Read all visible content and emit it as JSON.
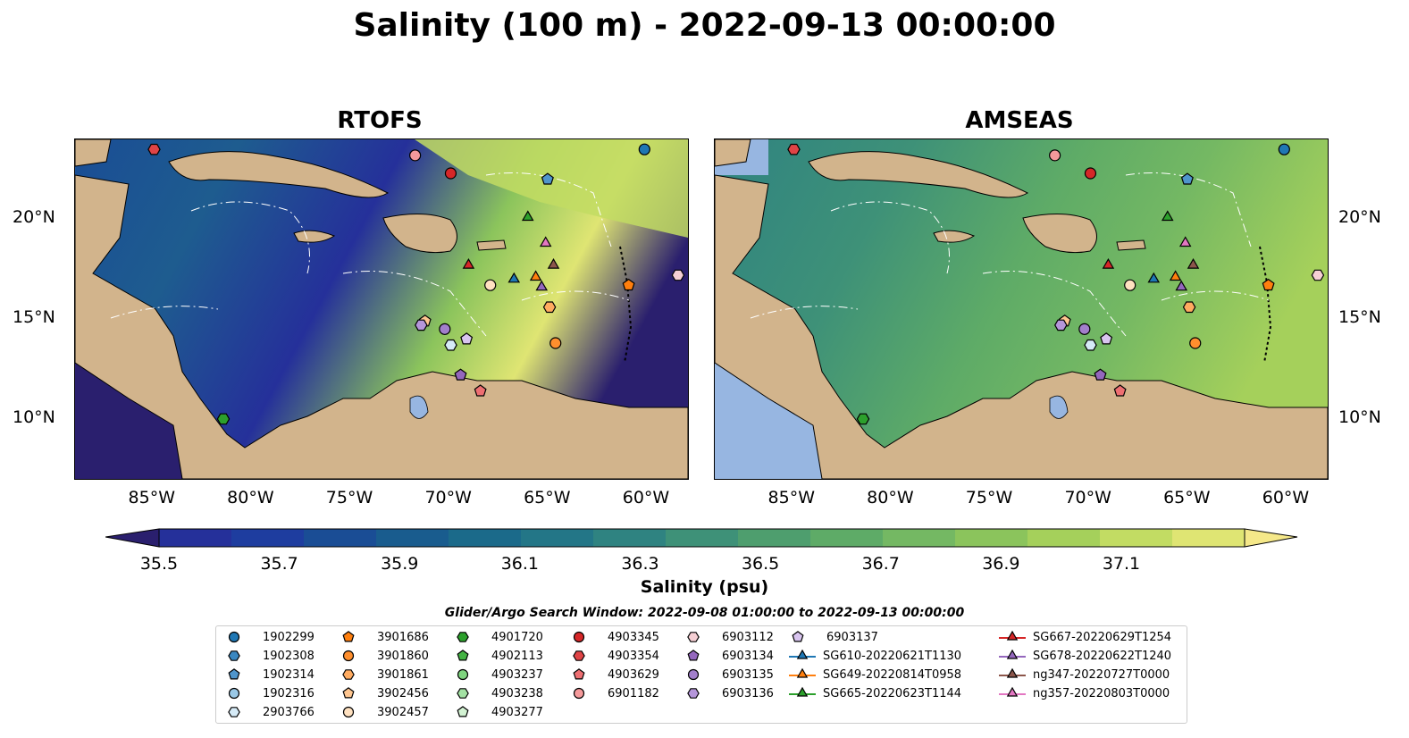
{
  "title": "Salinity (100 m) - 2022-09-13 00:00:00",
  "panels": [
    {
      "id": "rtofs",
      "title": "RTOFS"
    },
    {
      "id": "amseas",
      "title": "AMSEAS"
    }
  ],
  "lon_labels": [
    "85°W",
    "80°W",
    "75°W",
    "70°W",
    "65°W",
    "60°W"
  ],
  "lat_labels": [
    "20°N",
    "15°N",
    "10°N"
  ],
  "colorbar": {
    "label": "Salinity (psu)",
    "ticks": [
      "35.5",
      "35.7",
      "35.9",
      "36.1",
      "36.3",
      "36.5",
      "36.7",
      "36.9",
      "37.1"
    ],
    "colors": [
      "#2a1f6e",
      "#25309a",
      "#1e3d9f",
      "#1a4d95",
      "#195c8e",
      "#1b6a8a",
      "#237687",
      "#2f8381",
      "#3e9178",
      "#4e9e6e",
      "#5eab67",
      "#74b863",
      "#8bc45c",
      "#a5d05b",
      "#c2dc63",
      "#dfe573",
      "#f5e889"
    ]
  },
  "legend": {
    "title": "Glider/Argo Search Window: 2022-09-08 01:00:00 to 2022-09-13 00:00:00",
    "columns": [
      [
        {
          "label": "1902299",
          "marker": "circle",
          "color": "#1f77b4"
        },
        {
          "label": "1902308",
          "marker": "hexagon",
          "color": "#3a87c0"
        },
        {
          "label": "1902314",
          "marker": "pentagon",
          "color": "#4f95cc"
        },
        {
          "label": "1902316",
          "marker": "circle",
          "color": "#9ac8e6"
        },
        {
          "label": "2903766",
          "marker": "hexagon",
          "color": "#d6ebf7"
        }
      ],
      [
        {
          "label": "3901686",
          "marker": "pentagon",
          "color": "#ff7f0e"
        },
        {
          "label": "3901860",
          "marker": "circle",
          "color": "#ff8f2e"
        },
        {
          "label": "3901861",
          "marker": "hexagon",
          "color": "#ffab60"
        },
        {
          "label": "3902456",
          "marker": "pentagon",
          "color": "#ffc690"
        },
        {
          "label": "3902457",
          "marker": "circle",
          "color": "#ffe1c0"
        }
      ],
      [
        {
          "label": "4901720",
          "marker": "hexagon",
          "color": "#2ca02c"
        },
        {
          "label": "4902113",
          "marker": "pentagon",
          "color": "#44b344"
        },
        {
          "label": "4903237",
          "marker": "circle",
          "color": "#7fd47f"
        },
        {
          "label": "4903238",
          "marker": "hexagon",
          "color": "#a4e2a4"
        },
        {
          "label": "4903277",
          "marker": "pentagon",
          "color": "#d3f3d3"
        }
      ],
      [
        {
          "label": "4903345",
          "marker": "circle",
          "color": "#d62728"
        },
        {
          "label": "4903354",
          "marker": "hexagon",
          "color": "#e04446"
        },
        {
          "label": "4903629",
          "marker": "pentagon",
          "color": "#ee6f72"
        },
        {
          "label": "6901182",
          "marker": "circle",
          "color": "#f59a9b"
        }
      ],
      [
        {
          "label": "6903112",
          "marker": "hexagon",
          "color": "#f5cfd4"
        },
        {
          "label": "6903134",
          "marker": "pentagon",
          "color": "#9467bd"
        },
        {
          "label": "6903135",
          "marker": "circle",
          "color": "#a27fcb"
        },
        {
          "label": "6903136",
          "marker": "hexagon",
          "color": "#b596da"
        }
      ],
      [
        {
          "label": "6903137",
          "marker": "pentagon",
          "color": "#d9c5f0"
        },
        {
          "label": "SG610-20220621T1130",
          "marker": "triangle",
          "color": "#1f77b4"
        },
        {
          "label": "SG649-20220814T0958",
          "marker": "triangle",
          "color": "#ff7f0e"
        },
        {
          "label": "SG665-20220623T1144",
          "marker": "triangle",
          "color": "#2ca02c"
        }
      ],
      [
        {
          "label": "SG667-20220629T1254",
          "marker": "triangle",
          "color": "#d62728"
        },
        {
          "label": "SG678-20220622T1240",
          "marker": "triangle",
          "color": "#9467bd"
        },
        {
          "label": "ng347-20220727T0000",
          "marker": "triangle",
          "color": "#8c564b"
        },
        {
          "label": "ng357-20220803T0000",
          "marker": "triangle",
          "color": "#e377c2"
        }
      ]
    ]
  },
  "observations": [
    {
      "label": "1902299",
      "lon": -60.2,
      "lat": 23.5,
      "marker": "circle",
      "color": "#1f77b4"
    },
    {
      "label": "1902314",
      "lon": -65.1,
      "lat": 22.0,
      "marker": "pentagon",
      "color": "#4f95cc"
    },
    {
      "label": "2903766",
      "lon": -70.0,
      "lat": 13.7,
      "marker": "hexagon",
      "color": "#d6ebf7"
    },
    {
      "label": "3901686",
      "lon": -61.0,
      "lat": 16.7,
      "marker": "pentagon",
      "color": "#ff7f0e"
    },
    {
      "label": "3901860",
      "lon": -64.7,
      "lat": 13.8,
      "marker": "circle",
      "color": "#ff8f2e"
    },
    {
      "label": "3901861",
      "lon": -65.0,
      "lat": 15.6,
      "marker": "hexagon",
      "color": "#ffab60"
    },
    {
      "label": "3902456",
      "lon": -71.3,
      "lat": 14.9,
      "marker": "pentagon",
      "color": "#ffc690"
    },
    {
      "label": "3902457",
      "lon": -68.0,
      "lat": 16.7,
      "marker": "circle",
      "color": "#ffe1c0"
    },
    {
      "label": "4901720",
      "lon": -81.5,
      "lat": 10.0,
      "marker": "hexagon",
      "color": "#2ca02c"
    },
    {
      "label": "4903345",
      "lon": -70.0,
      "lat": 22.3,
      "marker": "circle",
      "color": "#d62728"
    },
    {
      "label": "4903354",
      "lon": -85.0,
      "lat": 23.5,
      "marker": "hexagon",
      "color": "#e04446"
    },
    {
      "label": "4903629",
      "lon": -68.5,
      "lat": 11.4,
      "marker": "pentagon",
      "color": "#ee6f72"
    },
    {
      "label": "6901182",
      "lon": -71.8,
      "lat": 23.2,
      "marker": "circle",
      "color": "#f59a9b"
    },
    {
      "label": "6903112",
      "lon": -58.5,
      "lat": 17.2,
      "marker": "hexagon",
      "color": "#f5cfd4"
    },
    {
      "label": "6903134",
      "lon": -69.5,
      "lat": 12.2,
      "marker": "pentagon",
      "color": "#9467bd"
    },
    {
      "label": "6903135",
      "lon": -70.3,
      "lat": 14.5,
      "marker": "circle",
      "color": "#a27fcb"
    },
    {
      "label": "6903136",
      "lon": -71.5,
      "lat": 14.7,
      "marker": "hexagon",
      "color": "#b596da"
    },
    {
      "label": "6903137",
      "lon": -69.2,
      "lat": 14.0,
      "marker": "pentagon",
      "color": "#d9c5f0"
    },
    {
      "label": "SG610-20220621T1130",
      "lon": -66.8,
      "lat": 17.0,
      "marker": "triangle",
      "color": "#1f77b4"
    },
    {
      "label": "SG649-20220814T0958",
      "lon": -65.7,
      "lat": 17.1,
      "marker": "triangle",
      "color": "#ff7f0e"
    },
    {
      "label": "SG665-20220623T1144",
      "lon": -66.1,
      "lat": 20.1,
      "marker": "triangle",
      "color": "#2ca02c"
    },
    {
      "label": "SG667-20220629T1254",
      "lon": -69.1,
      "lat": 17.7,
      "marker": "triangle",
      "color": "#d62728"
    },
    {
      "label": "SG678-20220622T1240",
      "lon": -65.4,
      "lat": 16.6,
      "marker": "triangle",
      "color": "#9467bd"
    },
    {
      "label": "ng347-20220727T0000",
      "lon": -64.8,
      "lat": 17.7,
      "marker": "triangle",
      "color": "#8c564b"
    },
    {
      "label": "ng357-20220803T0000",
      "lon": -65.2,
      "lat": 18.8,
      "marker": "triangle",
      "color": "#e377c2"
    }
  ],
  "map_extent": {
    "lon_min": -89,
    "lon_max": -58,
    "lat_min": 7,
    "lat_max": 24
  },
  "colors": {
    "land": "#d2b48c",
    "water_outside": "#97b6e1",
    "border": "#000000"
  }
}
